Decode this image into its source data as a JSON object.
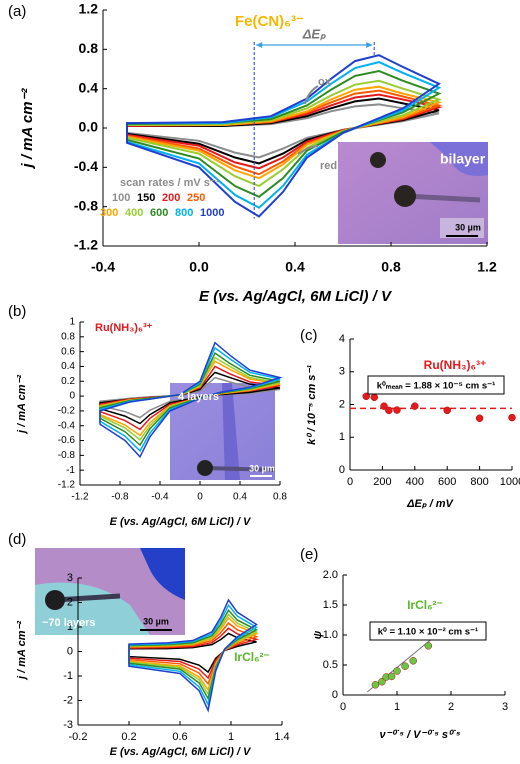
{
  "chart_data": [
    {
      "type": "line",
      "panel_label": "(a)",
      "title": "Fe(CN)₆³⁻",
      "title_color": "#f5b800",
      "xlabel": "E (vs. Ag/AgCl, 6M LiCl) / V",
      "ylabel": "j / mA cm⁻²",
      "xlim": [
        -0.4,
        1.2
      ],
      "ylim": [
        -1.2,
        1.2
      ],
      "xticks": [
        -0.4,
        {
          "value": 0,
          "label": "0.0"
        },
        0.4,
        0.8,
        1.2
      ],
      "yticks": [
        -1.2,
        -0.8,
        -0.4,
        {
          "value": 0,
          "label": "0.0"
        },
        0.4,
        0.8,
        1.2
      ],
      "legend_title": "scan rates / mV s⁻¹",
      "delta_ep_label": "ΔEₚ",
      "delta_ep_range": [
        0.23,
        0.73
      ],
      "ox_label": "ox",
      "red_label": "red",
      "inset_label": "bilayer",
      "scale_bar": "30 µm",
      "x": [
        -0.3,
        0.1,
        0.3,
        0.45,
        0.55,
        0.65,
        0.75,
        0.85,
        1.0,
        0.85,
        0.6,
        0.45,
        0.35,
        0.25,
        0.15,
        0.0,
        -0.3
      ],
      "series": [
        {
          "name": "100",
          "color": "#8c8c8c",
          "values": [
            0.02,
            0.02,
            0.04,
            0.1,
            0.17,
            0.22,
            0.24,
            0.2,
            0.15,
            0.07,
            -0.02,
            -0.1,
            -0.21,
            -0.3,
            -0.25,
            -0.13,
            -0.05
          ]
        },
        {
          "name": "150",
          "color": "#000000",
          "values": [
            0.02,
            0.02,
            0.05,
            0.12,
            0.2,
            0.27,
            0.3,
            0.25,
            0.18,
            0.08,
            -0.02,
            -0.12,
            -0.26,
            -0.36,
            -0.3,
            -0.16,
            -0.06
          ]
        },
        {
          "name": "200",
          "color": "#e41a1c",
          "values": [
            0.02,
            0.03,
            0.06,
            0.14,
            0.23,
            0.31,
            0.34,
            0.29,
            0.21,
            0.09,
            -0.02,
            -0.14,
            -0.3,
            -0.41,
            -0.35,
            -0.18,
            -0.07
          ]
        },
        {
          "name": "250",
          "color": "#ff5a00",
          "values": [
            0.03,
            0.03,
            0.06,
            0.16,
            0.26,
            0.35,
            0.38,
            0.32,
            0.23,
            0.1,
            -0.03,
            -0.16,
            -0.34,
            -0.47,
            -0.39,
            -0.21,
            -0.08
          ]
        },
        {
          "name": "300",
          "color": "#ffa500",
          "values": [
            0.03,
            0.03,
            0.07,
            0.17,
            0.29,
            0.39,
            0.42,
            0.35,
            0.26,
            0.11,
            -0.03,
            -0.17,
            -0.37,
            -0.51,
            -0.43,
            -0.23,
            -0.09
          ]
        },
        {
          "name": "400",
          "color": "#9acd32",
          "values": [
            0.03,
            0.04,
            0.08,
            0.2,
            0.33,
            0.44,
            0.48,
            0.4,
            0.29,
            0.13,
            -0.03,
            -0.2,
            -0.42,
            -0.59,
            -0.49,
            -0.26,
            -0.1
          ]
        },
        {
          "name": "600",
          "color": "#2e8b22",
          "values": [
            0.04,
            0.05,
            0.09,
            0.23,
            0.39,
            0.53,
            0.58,
            0.48,
            0.35,
            0.16,
            -0.04,
            -0.23,
            -0.51,
            -0.7,
            -0.59,
            -0.31,
            -0.12
          ]
        },
        {
          "name": "800",
          "color": "#00b0f0",
          "values": [
            0.05,
            0.05,
            0.11,
            0.27,
            0.45,
            0.61,
            0.67,
            0.56,
            0.41,
            0.18,
            -0.05,
            -0.27,
            -0.59,
            -0.81,
            -0.68,
            -0.36,
            -0.14
          ]
        },
        {
          "name": "1000",
          "color": "#1f3fcf",
          "values": [
            0.05,
            0.06,
            0.12,
            0.3,
            0.5,
            0.68,
            0.74,
            0.62,
            0.45,
            0.2,
            -0.05,
            -0.3,
            -0.65,
            -0.9,
            -0.75,
            -0.4,
            -0.15
          ]
        }
      ]
    },
    {
      "type": "line",
      "panel_label": "(b)",
      "title": "Ru(NH₃)₆³⁺",
      "title_color": "#e41a1c",
      "xlabel": "E (vs. Ag/AgCl, 6M LiCl) / V",
      "ylabel": "j / mA cm⁻²",
      "xlim": [
        -1.2,
        0.8
      ],
      "ylim": [
        -1.2,
        1
      ],
      "xticks": [
        -1.2,
        -0.8,
        -0.4,
        0,
        0.4,
        0.8
      ],
      "yticks": [
        -1.2,
        -1,
        -0.8,
        -0.6,
        -0.4,
        -0.2,
        0,
        0.2,
        0.4,
        0.6,
        0.8,
        1
      ],
      "inset_label": "4 layers",
      "scale_bar": "30 µm",
      "x": [
        -1.0,
        -0.7,
        -0.5,
        -0.2,
        0.0,
        0.1,
        0.15,
        0.3,
        0.5,
        0.8,
        0.5,
        0.2,
        0.0,
        -0.3,
        -0.5,
        -0.6,
        -0.75,
        -1.0
      ],
      "series": [
        {
          "color": "#8c8c8c",
          "values": [
            -0.07,
            -0.03,
            -0.01,
            0.01,
            0.07,
            0.19,
            0.25,
            0.19,
            0.12,
            0.09,
            0.04,
            0.02,
            -0.01,
            -0.07,
            -0.19,
            -0.29,
            -0.21,
            -0.13
          ]
        },
        {
          "color": "#000000",
          "values": [
            -0.09,
            -0.04,
            -0.02,
            0.01,
            0.09,
            0.25,
            0.32,
            0.25,
            0.16,
            0.11,
            0.05,
            0.02,
            -0.01,
            -0.09,
            -0.25,
            -0.37,
            -0.27,
            -0.17
          ]
        },
        {
          "color": "#e41a1c",
          "values": [
            -0.11,
            -0.04,
            -0.02,
            0.01,
            0.11,
            0.3,
            0.4,
            0.3,
            0.19,
            0.14,
            0.07,
            0.03,
            -0.02,
            -0.11,
            -0.3,
            -0.45,
            -0.33,
            -0.21
          ]
        },
        {
          "color": "#ffa500",
          "values": [
            -0.13,
            -0.05,
            -0.03,
            0.01,
            0.13,
            0.36,
            0.47,
            0.36,
            0.23,
            0.16,
            0.08,
            0.03,
            -0.02,
            -0.13,
            -0.36,
            -0.53,
            -0.39,
            -0.25
          ]
        },
        {
          "color": "#9acd32",
          "values": [
            -0.14,
            -0.06,
            -0.03,
            0.01,
            0.14,
            0.4,
            0.52,
            0.4,
            0.25,
            0.18,
            0.09,
            0.04,
            -0.02,
            -0.14,
            -0.4,
            -0.59,
            -0.43,
            -0.27
          ]
        },
        {
          "color": "#2e8b22",
          "values": [
            -0.16,
            -0.06,
            -0.03,
            0.02,
            0.16,
            0.44,
            0.58,
            0.44,
            0.28,
            0.2,
            0.1,
            0.04,
            -0.02,
            -0.16,
            -0.44,
            -0.66,
            -0.48,
            -0.3
          ]
        },
        {
          "color": "#00b0f0",
          "values": [
            -0.18,
            -0.07,
            -0.04,
            0.02,
            0.18,
            0.5,
            0.65,
            0.5,
            0.32,
            0.23,
            0.11,
            0.05,
            -0.03,
            -0.18,
            -0.5,
            -0.74,
            -0.54,
            -0.34
          ]
        },
        {
          "color": "#1f3fcf",
          "values": [
            -0.2,
            -0.08,
            -0.04,
            0.02,
            0.2,
            0.55,
            0.72,
            0.55,
            0.35,
            0.25,
            0.12,
            0.05,
            -0.03,
            -0.2,
            -0.55,
            -0.82,
            -0.6,
            -0.38
          ]
        }
      ]
    },
    {
      "type": "scatter",
      "panel_label": "(c)",
      "title": "Ru(NH₃)₆³⁺",
      "title_color": "#e41a1c",
      "xlabel": "ΔEₚ / mV",
      "ylabel": "k⁰ / 10⁻⁵ cm s⁻¹",
      "xlim": [
        0,
        1000
      ],
      "ylim": [
        0,
        4
      ],
      "xticks": [
        0,
        200,
        400,
        600,
        800,
        1000
      ],
      "yticks": [
        0,
        1,
        2,
        3,
        4
      ],
      "color": "#e41a1c",
      "x": [
        100,
        150,
        210,
        240,
        290,
        400,
        600,
        800,
        1000
      ],
      "values": [
        2.25,
        2.22,
        1.95,
        1.82,
        1.83,
        1.95,
        1.82,
        1.58,
        1.6
      ],
      "mean_line": 1.88,
      "mean_label": "k⁰ₘₑₐₙ = 1.88 × 10⁻⁵ cm s⁻¹"
    },
    {
      "type": "line",
      "panel_label": "(d)",
      "title": "IrCl₆²⁻",
      "title_color": "#5ab82a",
      "xlabel": "E (vs. Ag/AgCl, 6M LiCl) / V",
      "ylabel": "j / mA cm⁻²",
      "xlim": [
        -0.2,
        1.4
      ],
      "ylim": [
        -3,
        3
      ],
      "xticks": [
        -0.2,
        0.2,
        0.6,
        1,
        1.4
      ],
      "yticks": [
        -3,
        -2,
        -1,
        0,
        1,
        2,
        3
      ],
      "inset_label": "~70 layers",
      "scale_bar": "30 µm",
      "x": [
        0.2,
        0.5,
        0.7,
        0.85,
        0.92,
        0.98,
        1.05,
        1.2,
        1.05,
        0.95,
        0.88,
        0.82,
        0.75,
        0.6,
        0.2
      ],
      "series": [
        {
          "color": "#000000",
          "values": [
            0.11,
            0.12,
            0.16,
            0.28,
            0.49,
            0.74,
            0.56,
            0.39,
            0.21,
            0.04,
            -0.28,
            -0.84,
            -0.56,
            -0.32,
            -0.21
          ]
        },
        {
          "color": "#e41a1c",
          "values": [
            0.14,
            0.16,
            0.2,
            0.36,
            0.63,
            0.95,
            0.72,
            0.5,
            0.27,
            0.05,
            -0.36,
            -1.08,
            -0.72,
            -0.41,
            -0.27
          ]
        },
        {
          "color": "#ff5a00",
          "values": [
            0.17,
            0.19,
            0.25,
            0.44,
            0.77,
            1.16,
            0.88,
            0.61,
            0.33,
            0.06,
            -0.44,
            -1.32,
            -0.88,
            -0.5,
            -0.33
          ]
        },
        {
          "color": "#ffa500",
          "values": [
            0.2,
            0.23,
            0.29,
            0.52,
            0.91,
            1.37,
            1.04,
            0.72,
            0.39,
            0.07,
            -0.52,
            -1.56,
            -1.04,
            -0.59,
            -0.39
          ]
        },
        {
          "color": "#9acd32",
          "values": [
            0.22,
            0.25,
            0.32,
            0.58,
            1.01,
            1.51,
            1.15,
            0.79,
            0.43,
            0.07,
            -0.58,
            -1.73,
            -1.15,
            -0.65,
            -0.43
          ]
        },
        {
          "color": "#2e8b22",
          "values": [
            0.24,
            0.28,
            0.36,
            0.64,
            1.12,
            1.68,
            1.28,
            0.88,
            0.48,
            0.08,
            -0.64,
            -1.92,
            -1.28,
            -0.72,
            -0.48
          ]
        },
        {
          "color": "#00b0f0",
          "values": [
            0.27,
            0.32,
            0.41,
            0.72,
            1.26,
            1.89,
            1.44,
            0.99,
            0.54,
            0.09,
            -0.72,
            -2.16,
            -1.44,
            -0.81,
            -0.54
          ]
        },
        {
          "color": "#1f3fcf",
          "values": [
            0.3,
            0.35,
            0.45,
            0.8,
            1.4,
            2.1,
            1.6,
            1.1,
            0.6,
            0.1,
            -0.8,
            -2.4,
            -1.6,
            -0.9,
            -0.6
          ]
        }
      ]
    },
    {
      "type": "scatter",
      "panel_label": "(e)",
      "title": "IrCl₆²⁻",
      "title_color": "#5ab82a",
      "xlabel": "ν⁻⁰˙⁵ / V⁻⁰˙⁵ s⁰˙⁵",
      "ylabel": "ψ",
      "xlim": [
        0,
        3
      ],
      "ylim": [
        0,
        2
      ],
      "xticks": [
        0,
        1,
        2,
        3
      ],
      "yticks": [
        0,
        0.5,
        {
          "value": 1,
          "label": "1.0"
        },
        1.5,
        {
          "value": 2,
          "label": "2.0"
        }
      ],
      "color": "#6cc644",
      "x": [
        0.6,
        0.72,
        0.8,
        0.9,
        1.0,
        1.15,
        1.3,
        1.58
      ],
      "values": [
        0.17,
        0.22,
        0.3,
        0.31,
        0.4,
        0.48,
        0.57,
        0.82
      ],
      "fit_line": {
        "x": [
          0.45,
          2.0
        ],
        "y": [
          0.05,
          1.2
        ]
      },
      "fit_label": "k⁰ = 1.10 × 10⁻² cm s⁻¹"
    }
  ]
}
